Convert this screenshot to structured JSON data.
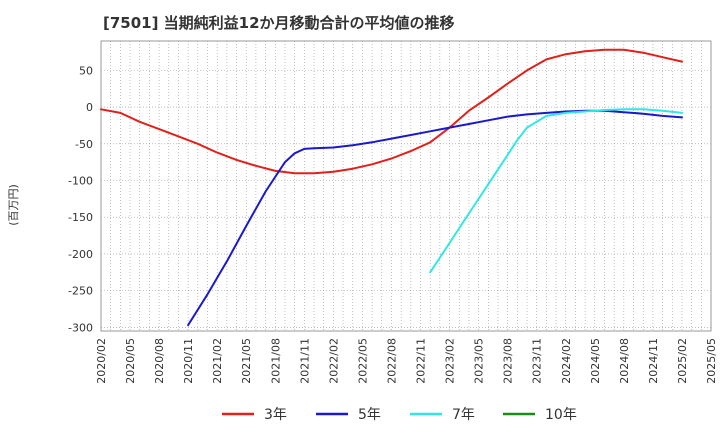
{
  "chart_data": {
    "type": "line",
    "title": "[7501]  当期純利益12か月移動合計の平均値の推移",
    "ylabel": "(百万円)",
    "xlabel": "",
    "ylim": [
      -305,
      90
    ],
    "yticks": [
      50,
      0,
      -50,
      -100,
      -150,
      -200,
      -250,
      -300
    ],
    "xlim": [
      0,
      63
    ],
    "xticks": [
      "2020/02",
      "2020/05",
      "2020/08",
      "2020/11",
      "2021/02",
      "2021/05",
      "2021/08",
      "2021/11",
      "2022/02",
      "2022/05",
      "2022/08",
      "2022/11",
      "2023/02",
      "2023/05",
      "2023/08",
      "2023/11",
      "2024/02",
      "2024/05",
      "2024/08",
      "2024/11",
      "2025/02",
      "2025/05"
    ],
    "grid": true,
    "legend_position": "bottom",
    "series": [
      {
        "name": "3年",
        "color": "#e0201b",
        "x": [
          0,
          2,
          4,
          6,
          8,
          10,
          12,
          14,
          16,
          18,
          20,
          22,
          24,
          26,
          28,
          30,
          32,
          34,
          36,
          38,
          40,
          42,
          44,
          46,
          48,
          50,
          52,
          54,
          56,
          58,
          60
        ],
        "values": [
          -3,
          -8,
          -20,
          -30,
          -40,
          -50,
          -62,
          -72,
          -80,
          -87,
          -90,
          -90,
          -88,
          -84,
          -78,
          -70,
          -60,
          -48,
          -28,
          -5,
          13,
          32,
          50,
          65,
          72,
          76,
          78,
          78,
          74,
          68,
          62
        ]
      },
      {
        "name": "5年",
        "color": "#1a1acc",
        "x": [
          9,
          11,
          13,
          15,
          17,
          19,
          20,
          21,
          22,
          24,
          26,
          28,
          30,
          32,
          34,
          36,
          38,
          40,
          42,
          44,
          46,
          48,
          50,
          52,
          54,
          56,
          58,
          60
        ],
        "values": [
          -297,
          -255,
          -210,
          -162,
          -115,
          -75,
          -63,
          -57,
          -56,
          -55,
          -52,
          -48,
          -43,
          -38,
          -33,
          -28,
          -23,
          -18,
          -13,
          -10,
          -8,
          -6,
          -5,
          -5,
          -7,
          -9,
          -12,
          -14
        ]
      },
      {
        "name": "7年",
        "color": "#33e6e6",
        "x": [
          34,
          36,
          38,
          40,
          42,
          43,
          44,
          46,
          48,
          50,
          52,
          54,
          56,
          58,
          60
        ],
        "values": [
          -225,
          -185,
          -145,
          -105,
          -65,
          -45,
          -28,
          -12,
          -8,
          -6,
          -4,
          -3,
          -3,
          -5,
          -8
        ]
      },
      {
        "name": "10年",
        "color": "#1a8c1a",
        "x": [],
        "values": []
      }
    ]
  }
}
